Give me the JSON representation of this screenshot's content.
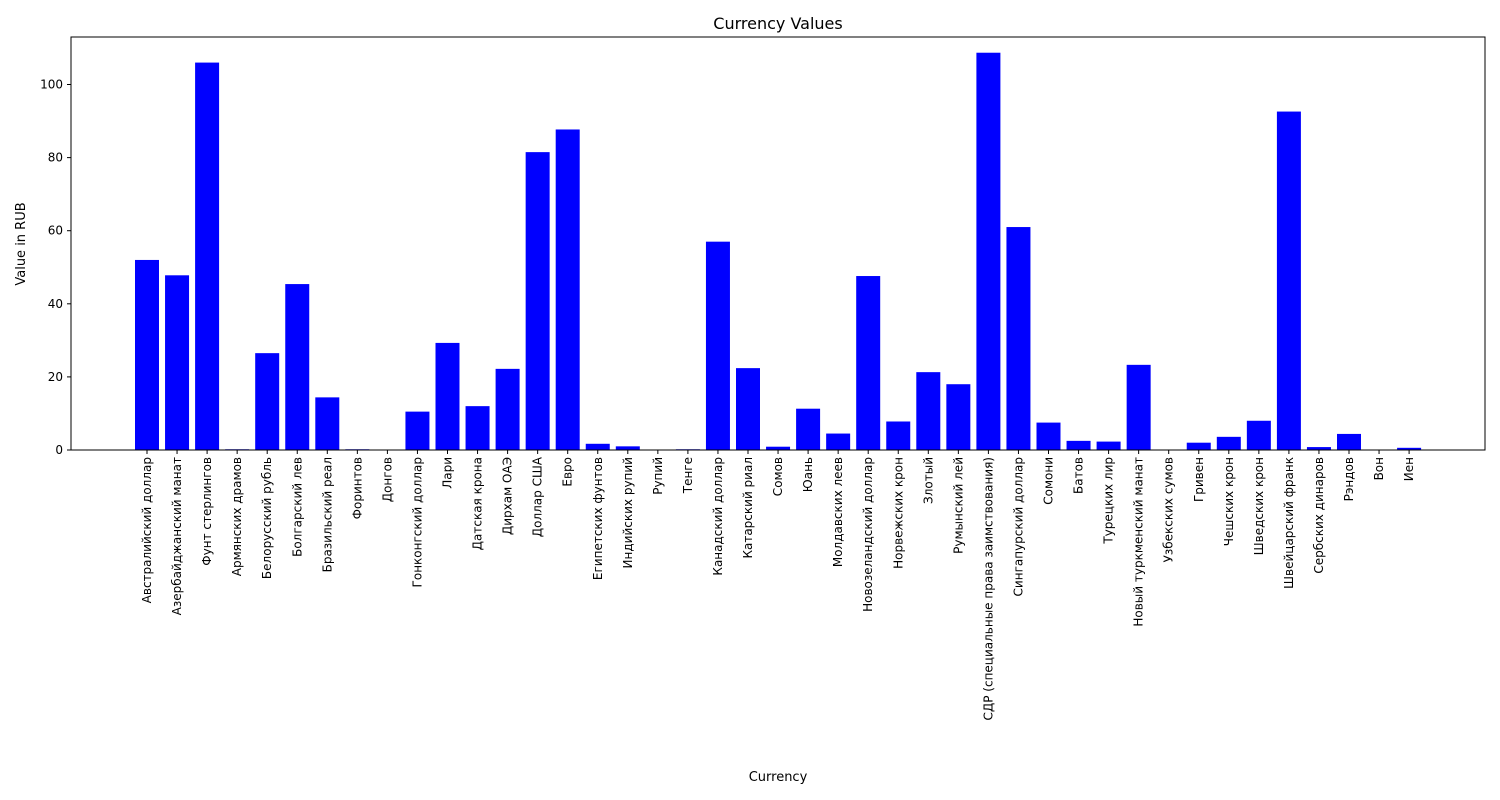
{
  "chart_data": {
    "type": "bar",
    "title": "Currency Values",
    "xlabel": "Currency",
    "ylabel": "Value in RUB",
    "ylim": [
      0,
      113
    ],
    "yticks": [
      0,
      20,
      40,
      60,
      80,
      100
    ],
    "grid": false,
    "bar_color": "#0000ff",
    "categories": [
      "Австралийский доллар",
      "Азербайджанский манат",
      "Фунт стерлингов",
      "Армянских драмов",
      "Белорусский рубль",
      "Болгарский лев",
      "Бразильский реал",
      "Форинтов",
      "Донгов",
      "Гонконгский доллар",
      "Лари",
      "Датская крона",
      "Дирхам ОАЭ",
      "Доллар США",
      "Евро",
      "Египетских фунтов",
      "Индийских рупий",
      "Рупий",
      "Тенге",
      "Канадский доллар",
      "Катарский риал",
      "Сомов",
      "Юань",
      "Молдавских леев",
      "Новозеландский доллар",
      "Норвежских крон",
      "Злотый",
      "Румынский лей",
      "СДР (специальные права заимствования)",
      "Сингапурский доллар",
      "Сомони",
      "Батов",
      "Турецких лир",
      "Новый туркменский манат",
      "Узбекских сумов",
      "Гривен",
      "Чешских крон",
      "Шведских крон",
      "Швейцарский франк",
      "Сербских динаров",
      "Рэндов",
      "Вон",
      "Иен"
    ],
    "values": [
      52.0,
      47.8,
      106.0,
      0.2,
      26.5,
      45.4,
      14.4,
      0.2,
      0.004,
      10.5,
      29.3,
      12.0,
      22.2,
      81.5,
      87.7,
      1.7,
      1.0,
      0.08,
      0.2,
      57.0,
      22.4,
      0.9,
      11.3,
      4.5,
      47.6,
      7.8,
      21.3,
      18.0,
      108.7,
      61.0,
      7.5,
      2.5,
      2.3,
      23.3,
      0.007,
      2.0,
      3.6,
      8.0,
      92.6,
      0.8,
      4.4,
      0.06,
      0.6
    ]
  }
}
